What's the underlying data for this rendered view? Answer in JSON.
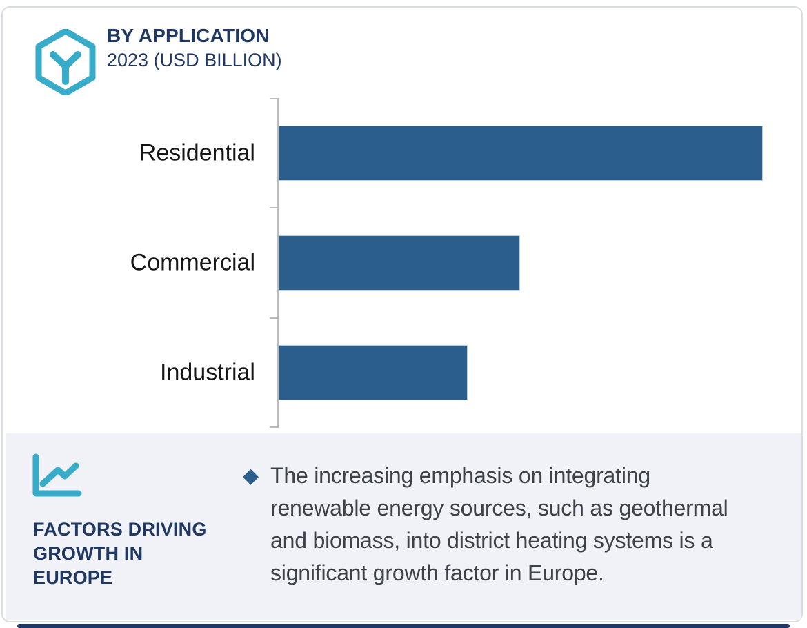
{
  "header": {
    "title": "BY APPLICATION",
    "subtitle": "2023 (USD BILLION)",
    "logo_icon": "hexagon-y-brand-logo"
  },
  "chart_data": {
    "type": "bar",
    "orientation": "horizontal",
    "title": "BY APPLICATION 2023 (USD BILLION)",
    "categories": [
      "Residential",
      "Commercial",
      "Industrial"
    ],
    "values_relative_pct_of_longest": [
      100,
      49.8,
      39.1
    ],
    "value_axis_labels_shown": false,
    "gridlines": false,
    "unit": "USD Billion",
    "bar_color": "#2b5e8d",
    "axis_color": "#b9bcbe"
  },
  "factors": {
    "icon": "line-chart-icon",
    "heading_lines": [
      "FACTORS DRIVING",
      "GROWTH IN",
      "EUROPE"
    ],
    "bullet": {
      "marker": "◆",
      "lines": [
        "The increasing emphasis on integrating",
        "renewable energy sources, such as geothermal",
        "and biomass, into district heating systems is a",
        "significant growth factor in Europe."
      ]
    }
  },
  "colors": {
    "teal_accent": "#38abc9",
    "navy": "#1f3864",
    "bar_blue": "#2b5e8d",
    "panel_background": "#f0f2f7",
    "body_text": "#3e4247"
  }
}
